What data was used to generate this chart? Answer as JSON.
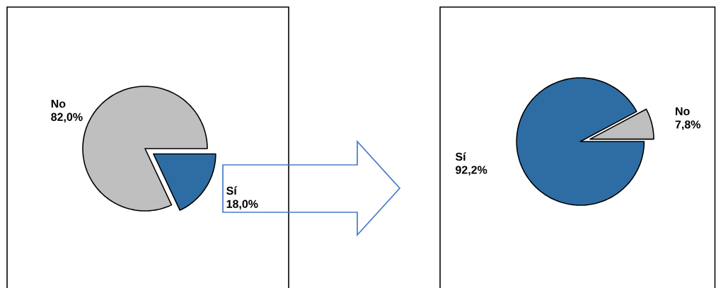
{
  "chart_data": [
    {
      "type": "pie",
      "categories": [
        "No",
        "Sí"
      ],
      "values": [
        82.0,
        18.0
      ],
      "colors": [
        "#bfbfbf",
        "#2e6da4"
      ],
      "value_labels": [
        "82,0%",
        "18,0%"
      ]
    },
    {
      "type": "pie",
      "categories": [
        "No",
        "Sí"
      ],
      "values": [
        7.8,
        92.2
      ],
      "colors": [
        "#bfbfbf",
        "#2e6da4"
      ],
      "value_labels": [
        "7,8%",
        "92,2%"
      ]
    }
  ]
}
